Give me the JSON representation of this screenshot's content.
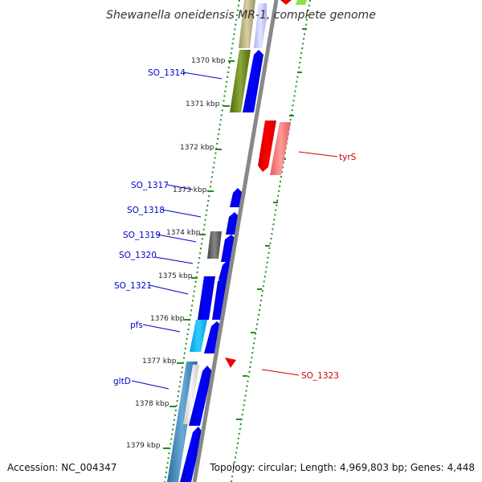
{
  "title": "Shewanella oneidensis MR-1, complete genome",
  "footer": {
    "accession": "Accession: NC_004347",
    "summary": "Topology: circular; Length: 4,969,803 bp; Genes: 4,448"
  },
  "colors": {
    "forward_gene": "#0000ee",
    "reverse_gene": "#ee0000",
    "label_blue": "#0000cc",
    "label_red": "#cc0000",
    "tick_green": "#228b22",
    "backbone": "#888888"
  },
  "kbp_ticks": [
    "1370 kbp",
    "1371 kbp",
    "1372 kbp",
    "1373 kbp",
    "1374 kbp",
    "1375 kbp",
    "1376 kbp",
    "1377 kbp",
    "1378 kbp",
    "1379 kbp"
  ],
  "gene_labels": [
    {
      "text": "SO_1314",
      "strand": "forward"
    },
    {
      "text": "SO_1317",
      "strand": "forward"
    },
    {
      "text": "SO_1318",
      "strand": "forward"
    },
    {
      "text": "SO_1319",
      "strand": "forward"
    },
    {
      "text": "SO_1320",
      "strand": "forward"
    },
    {
      "text": "SO_1321",
      "strand": "forward"
    },
    {
      "text": "pfs",
      "strand": "forward"
    },
    {
      "text": "gltD",
      "strand": "forward"
    },
    {
      "text": "tyrS",
      "strand": "reverse"
    },
    {
      "text": "SO_1323",
      "strand": "reverse"
    }
  ]
}
